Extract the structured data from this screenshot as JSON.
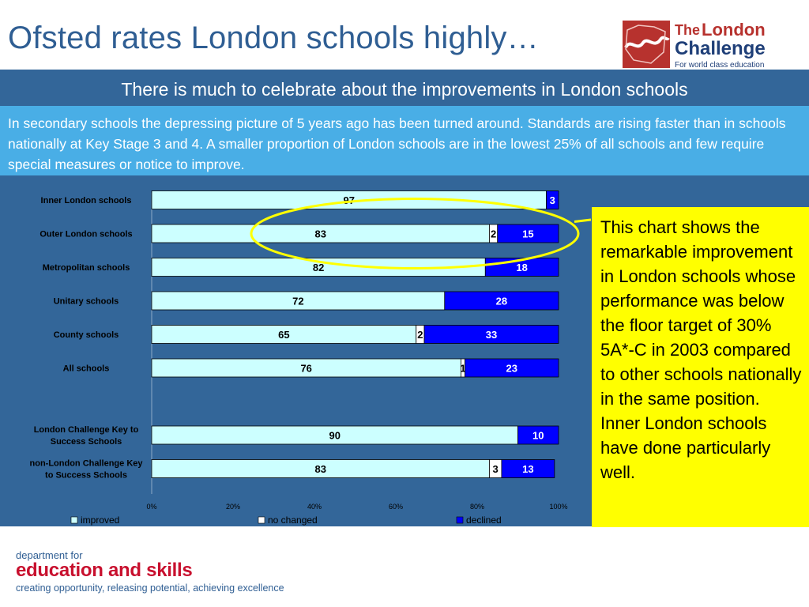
{
  "title": "Ofsted rates London schools highly…",
  "logo": {
    "the": "The",
    "london": "London",
    "challenge": "Challenge",
    "tagline": "For world class education"
  },
  "banner": "There is much to celebrate about the improvements in London schools",
  "intro": "In secondary schools the depressing picture of 5 years ago has been turned around.  Standards are rising faster than in schools nationally at Key Stage 3 and 4. A smaller proportion of London schools are in the lowest 25% of all schools and few require special measures or notice to improve.",
  "callout": "This chart shows the remarkable improvement in London schools whose performance was below the floor target of 30% 5A*-C in 2003 compared to other schools nationally in the same position. Inner London schools have done particularly well.",
  "footer": {
    "top": "department for",
    "main": "education and skills",
    "tagline": "creating opportunity, releasing potential, achieving excellence"
  },
  "colors": {
    "improved": "#ccffff",
    "no_change": "#ffffff",
    "declined": "#0000ff",
    "panel": "#336699",
    "highlight_ellipse": "#ffff00"
  },
  "chart_data": {
    "type": "bar",
    "orientation": "horizontal-stacked-100",
    "categories": [
      "Inner London schools",
      "Outer London schools",
      "Metropolitan schools",
      "Unitary schools",
      "County schools",
      "All schools",
      "",
      "London Challenge Key to Success Schools",
      "non-London Challenge Key to Success Schools"
    ],
    "series": [
      {
        "name": "improved",
        "values": [
          97,
          83,
          82,
          72,
          65,
          76,
          null,
          90,
          83
        ]
      },
      {
        "name": "no changed",
        "values": [
          0,
          2,
          0,
          0,
          2,
          1,
          null,
          0,
          3
        ]
      },
      {
        "name": "declined",
        "values": [
          3,
          15,
          18,
          28,
          33,
          23,
          null,
          10,
          13
        ]
      }
    ],
    "xticks": [
      "0%",
      "20%",
      "40%",
      "60%",
      "80%",
      "100%"
    ],
    "xlim": [
      0,
      100
    ],
    "legend": "bottom",
    "highlighted_category": "Outer London schools"
  }
}
